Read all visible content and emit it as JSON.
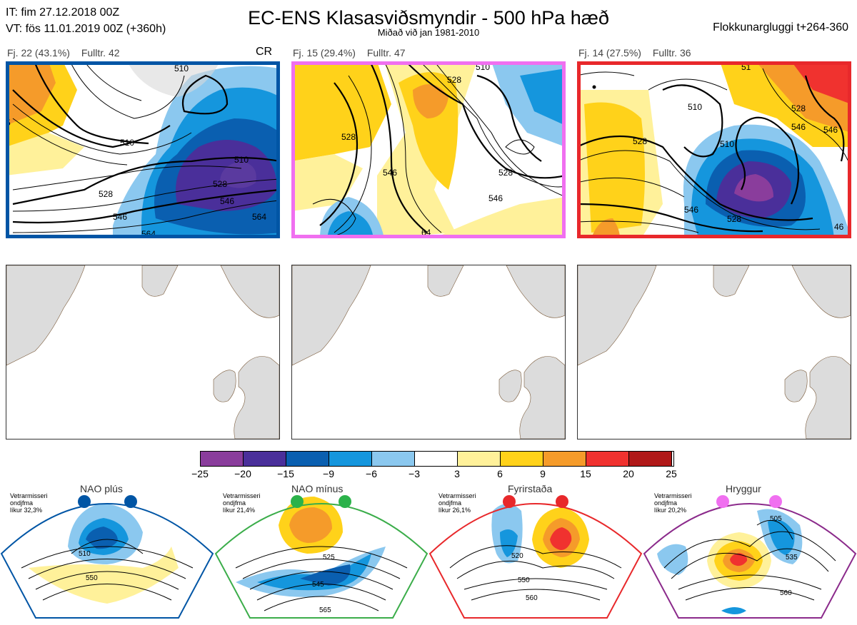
{
  "header": {
    "init_line": "IT: fim 27.12.2018 00Z",
    "valid_line": "VT: fös 11.01.2019 00Z  (+360h)",
    "title": "EC-ENS Klasasviðsmyndir - 500 hPa hæð",
    "subtitle": "Miðað við jan 1981-2010",
    "window": "Flokkunargluggi t+264-360"
  },
  "clusters": [
    {
      "label": "Fj. 22 (43.1%)",
      "fulltr": "Fulltr. 42",
      "tag": "CR",
      "border_color": "#0055a5",
      "contour_labels": [
        "510",
        "510",
        "528",
        "528",
        "546",
        "546",
        "564",
        "564",
        "510",
        "5"
      ]
    },
    {
      "label": "Fj. 15 (29.4%)",
      "fulltr": "Fulltr. 47",
      "tag": "",
      "border_color": "#f06ff0",
      "contour_labels": [
        "528",
        "528",
        "546",
        "546",
        "528",
        "510",
        "64"
      ]
    },
    {
      "label": "Fj. 14 (27.5%)",
      "fulltr": "Fulltr. 36",
      "tag": "",
      "border_color": "#e8282b",
      "contour_labels": [
        "510",
        "528",
        "528",
        "546",
        "546",
        "528",
        "510",
        "546",
        "46",
        "51"
      ]
    }
  ],
  "colorbar": {
    "ticks": [
      "−25",
      "−20",
      "−15",
      "−9",
      "−6",
      "−3",
      "3",
      "6",
      "9",
      "15",
      "20",
      "25"
    ],
    "colors": [
      "#8a3d9c",
      "#4a2f9a",
      "#0a5fb0",
      "#1596dd",
      "#8bc8ef",
      "#ffffff",
      "#fff19a",
      "#ffd21a",
      "#f59b2a",
      "#f0322f",
      "#b01818"
    ]
  },
  "regimes": [
    {
      "name": "NAO plús",
      "info": [
        "Vetrarmisseri",
        "ondjfma",
        "líkur 32,3%"
      ],
      "color": "#0055a5",
      "dot_color": "#0055a5",
      "labels": [
        "510",
        "550"
      ]
    },
    {
      "name": "NAO mínus",
      "info": [
        "Vetrarmisseri",
        "ondjfma",
        "líkur 21,4%"
      ],
      "color": "#3bad4a",
      "dot_color": "#2bb24a",
      "labels": [
        "525",
        "545",
        "565"
      ]
    },
    {
      "name": "Fyrirstaða",
      "info": [
        "Vetrarmisseri",
        "ondjfma",
        "líkur 26,1%"
      ],
      "color": "#e8282b",
      "dot_color": "#e8282b",
      "labels": [
        "520",
        "550",
        "560"
      ]
    },
    {
      "name": "Hryggur",
      "info": [
        "Vetrarmisseri",
        "ondjfma",
        "líkur 20,2%"
      ],
      "color": "#8b2a8b",
      "dot_color": "#f06ff0",
      "labels": [
        "505",
        "535",
        "560"
      ]
    }
  ]
}
